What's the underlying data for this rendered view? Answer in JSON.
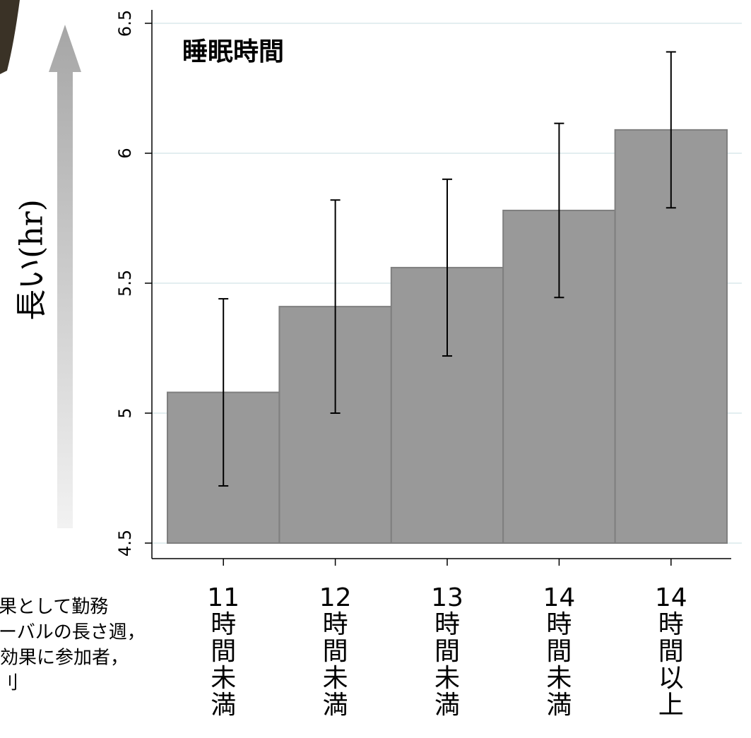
{
  "chart_data": {
    "type": "bar",
    "title": "睡眠時間",
    "y_axis_label": "長い(hr)",
    "categories": [
      "11時間未満",
      "12時間未満",
      "13時間未満",
      "14時間未満",
      "14時間以上"
    ],
    "values": [
      5.08,
      5.41,
      5.56,
      5.78,
      6.09
    ],
    "errors": [
      0.36,
      0.41,
      0.34,
      0.335,
      0.3
    ],
    "color": "#999999",
    "ylim": [
      4.5,
      6.5
    ],
    "yticks": [
      4.5,
      5,
      5.5,
      6,
      6.5
    ],
    "grid": true
  },
  "side_text": [
    "果として勤務",
    "ーバルの長さ週，",
    "効果に参加者，",
    "刂"
  ]
}
